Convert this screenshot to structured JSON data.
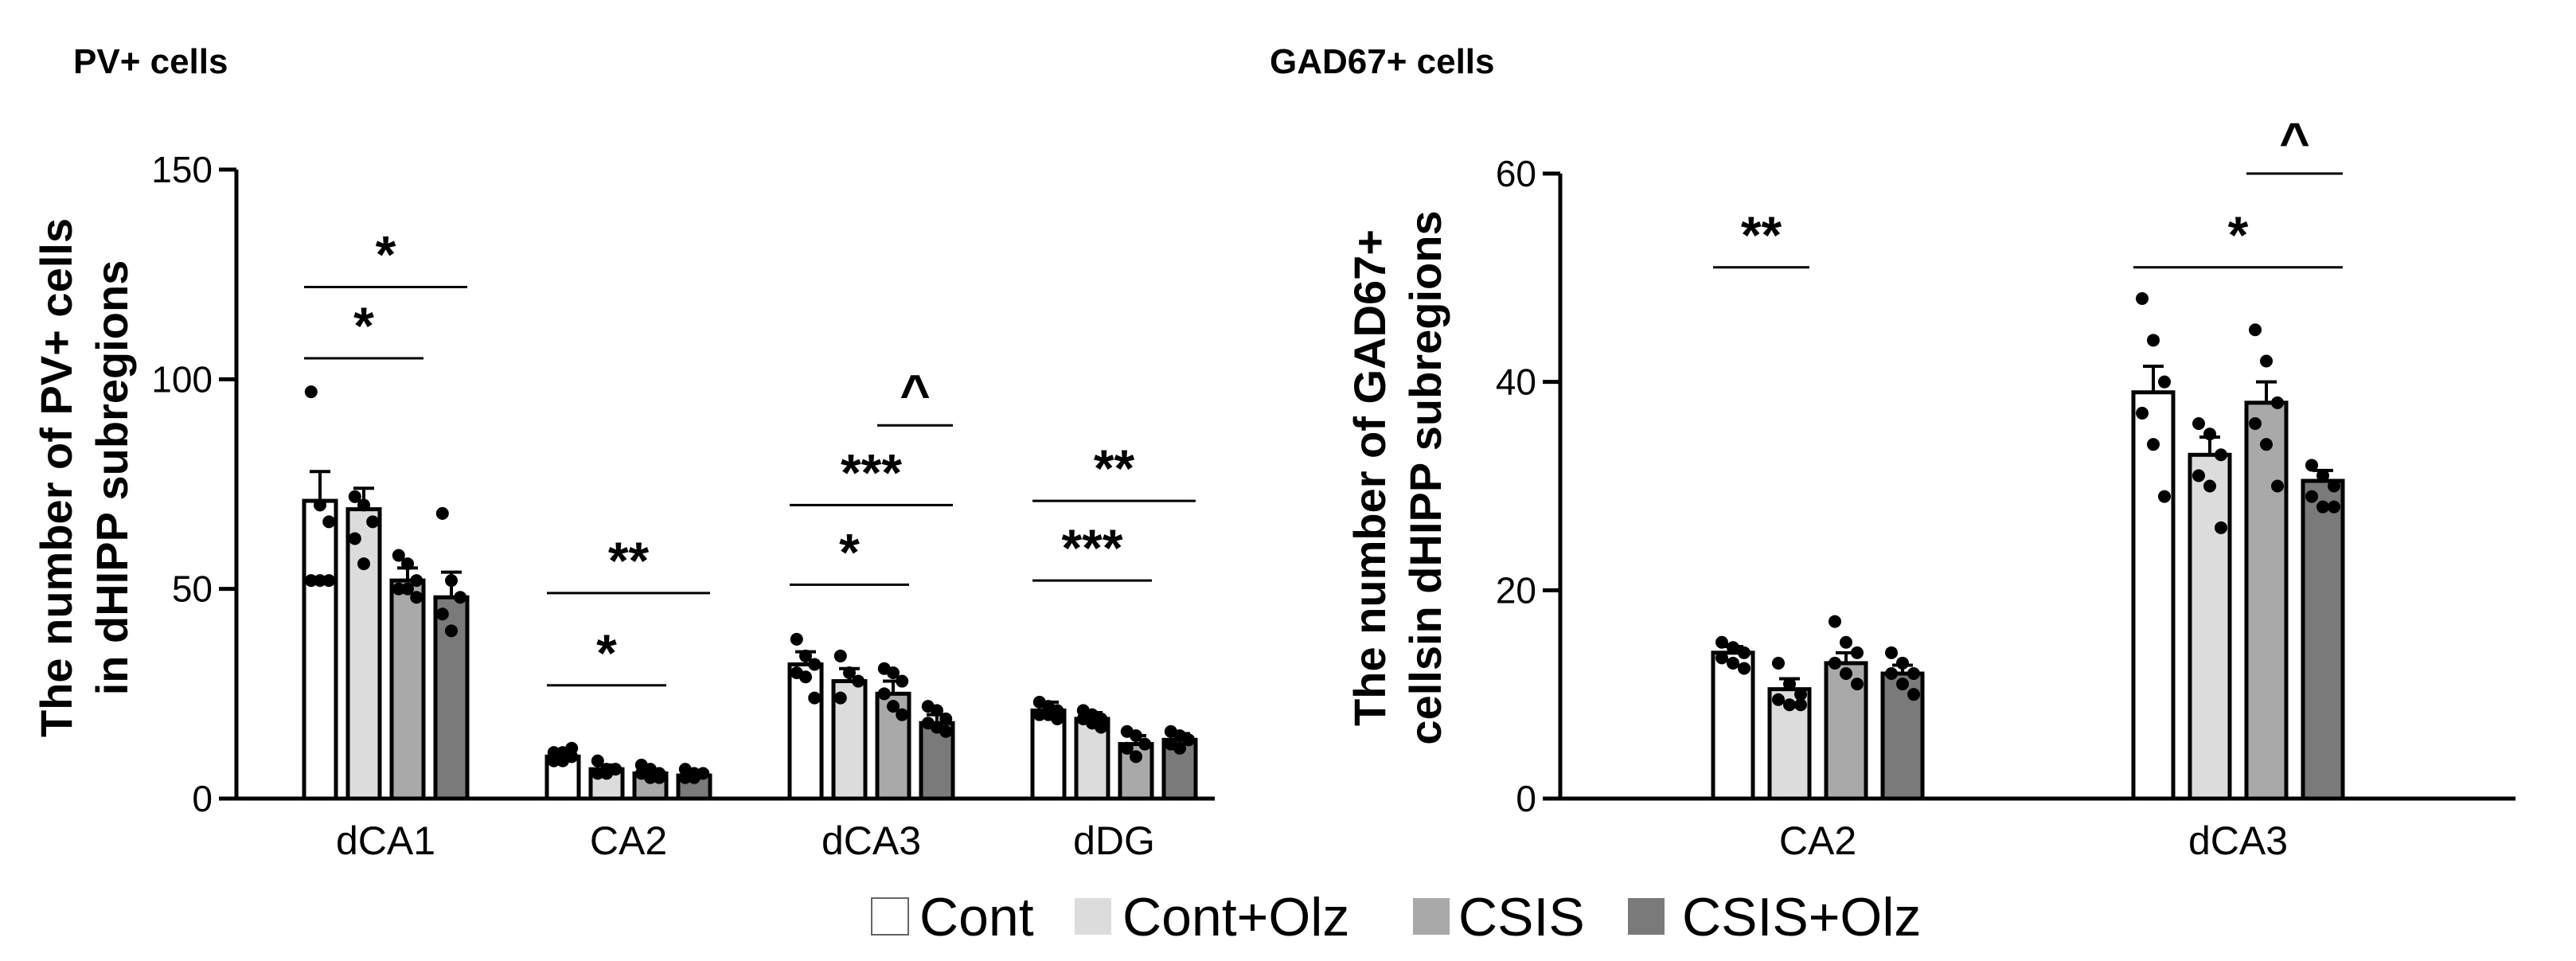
{
  "legend": [
    {
      "name": "Cont",
      "color": "#ffffff"
    },
    {
      "name": "Cont+Olz",
      "color": "#dcdcdc"
    },
    {
      "name": "CSIS",
      "color": "#a9a9a9"
    },
    {
      "name": "CSIS+Olz",
      "color": "#7a7a7a"
    }
  ],
  "chart_data": [
    {
      "type": "bar",
      "title": "PV+ cells",
      "ylabel": "The number of PV+ cells in dHIPP subregions",
      "ylabel_lines": [
        "The number of PV+ cells",
        "in dHIPP subregions"
      ],
      "ylim": [
        0,
        150
      ],
      "yticks": [
        0,
        50,
        100,
        150
      ],
      "categories": [
        "dCA1",
        "CA2",
        "dCA3",
        "dDG"
      ],
      "series": [
        {
          "name": "Cont",
          "values": [
            71,
            10,
            32,
            21
          ],
          "sem": [
            7,
            1,
            3,
            2
          ]
        },
        {
          "name": "Cont+Olz",
          "values": [
            69,
            7,
            28,
            19
          ],
          "sem": [
            5,
            1,
            3,
            1.5
          ]
        },
        {
          "name": "CSIS",
          "values": [
            52,
            6,
            25,
            13
          ],
          "sem": [
            3,
            1,
            3,
            2
          ]
        },
        {
          "name": "CSIS+Olz",
          "values": [
            48,
            5.5,
            18,
            14
          ],
          "sem": [
            6,
            0.8,
            2,
            1.5
          ]
        }
      ],
      "points": [
        [
          [
            97,
            70,
            66,
            52,
            52,
            52
          ],
          [
            9,
            9,
            10,
            11,
            11,
            12
          ],
          [
            38,
            34,
            32,
            30,
            29,
            24
          ],
          [
            23,
            22,
            21,
            20,
            20,
            19
          ]
        ],
        [
          [
            72,
            70,
            66,
            62,
            56
          ],
          [
            9,
            7,
            7,
            6,
            6
          ],
          [
            34,
            30,
            28,
            24
          ],
          [
            21,
            20,
            19,
            19,
            18,
            17
          ]
        ],
        [
          [
            58,
            56,
            52,
            50,
            50,
            48
          ],
          [
            8,
            7,
            6,
            6,
            5,
            5
          ],
          [
            31,
            30,
            28,
            25,
            22,
            20
          ],
          [
            16,
            15,
            13,
            12,
            10
          ]
        ],
        [
          [
            68,
            52,
            48,
            44,
            40
          ],
          [
            7,
            6,
            6,
            5,
            5
          ],
          [
            22,
            21,
            19,
            18,
            17,
            16
          ],
          [
            16,
            15,
            14,
            13,
            12
          ]
        ]
      ],
      "significance": [
        {
          "label": "*",
          "category": "dCA1",
          "from": 0,
          "to": 2,
          "y": 105
        },
        {
          "label": "*",
          "category": "dCA1",
          "from": 0,
          "to": 3,
          "y": 122
        },
        {
          "label": "*",
          "category": "CA2",
          "from": 0,
          "to": 2,
          "y": 27
        },
        {
          "label": "**",
          "category": "CA2",
          "from": 0,
          "to": 3,
          "y": 49
        },
        {
          "label": "*",
          "category": "dCA3",
          "from": 0,
          "to": 2,
          "y": 51
        },
        {
          "label": "***",
          "category": "dCA3",
          "from": 0,
          "to": 3,
          "y": 70
        },
        {
          "label": "^",
          "category": "dCA3",
          "from": 2,
          "to": 3,
          "y": 89
        },
        {
          "label": "***",
          "category": "dDG",
          "from": 0,
          "to": 2,
          "y": 52
        },
        {
          "label": "**",
          "category": "dDG",
          "from": 0,
          "to": 3,
          "y": 71
        }
      ]
    },
    {
      "type": "bar",
      "title": "GAD67+ cells",
      "ylabel": "The number of GAD67+ cellsin dHIPP subregions",
      "ylabel_lines": [
        "The number of GAD67+",
        "cellsin dHIPP subregions"
      ],
      "ylim": [
        0,
        60
      ],
      "yticks": [
        0,
        20,
        40,
        60
      ],
      "categories": [
        "CA2",
        "dCA3"
      ],
      "series": [
        {
          "name": "Cont",
          "values": [
            14,
            39
          ],
          "sem": [
            0.6,
            2.5
          ]
        },
        {
          "name": "Cont+Olz",
          "values": [
            10.5,
            33
          ],
          "sem": [
            1.0,
            1.7
          ]
        },
        {
          "name": "CSIS",
          "values": [
            13,
            38
          ],
          "sem": [
            1.0,
            2.0
          ]
        },
        {
          "name": "CSIS+Olz",
          "values": [
            12,
            30.5
          ],
          "sem": [
            0.8,
            1.0
          ]
        }
      ],
      "points": [
        [
          [
            15,
            14.5,
            14,
            13.5,
            13,
            12.5
          ],
          [
            48,
            44,
            40,
            37,
            34,
            29
          ]
        ],
        [
          [
            13,
            11,
            10,
            9.5,
            9,
            9
          ],
          [
            36,
            35,
            33,
            31,
            30,
            26
          ]
        ],
        [
          [
            17,
            15,
            14,
            13,
            12,
            11
          ],
          [
            45,
            42,
            38,
            36,
            34,
            30
          ]
        ],
        [
          [
            14,
            13,
            12,
            12,
            11,
            10
          ],
          [
            32,
            31,
            30,
            29,
            28,
            28
          ]
        ]
      ],
      "significance": [
        {
          "label": "**",
          "category": "CA2",
          "from": 0,
          "to": 1,
          "y": 51
        },
        {
          "label": "*",
          "category": "dCA3",
          "from": 0,
          "to": 3,
          "y": 51
        },
        {
          "label": "^",
          "category": "dCA3",
          "from": 2,
          "to": 3,
          "y": 60
        }
      ]
    }
  ]
}
